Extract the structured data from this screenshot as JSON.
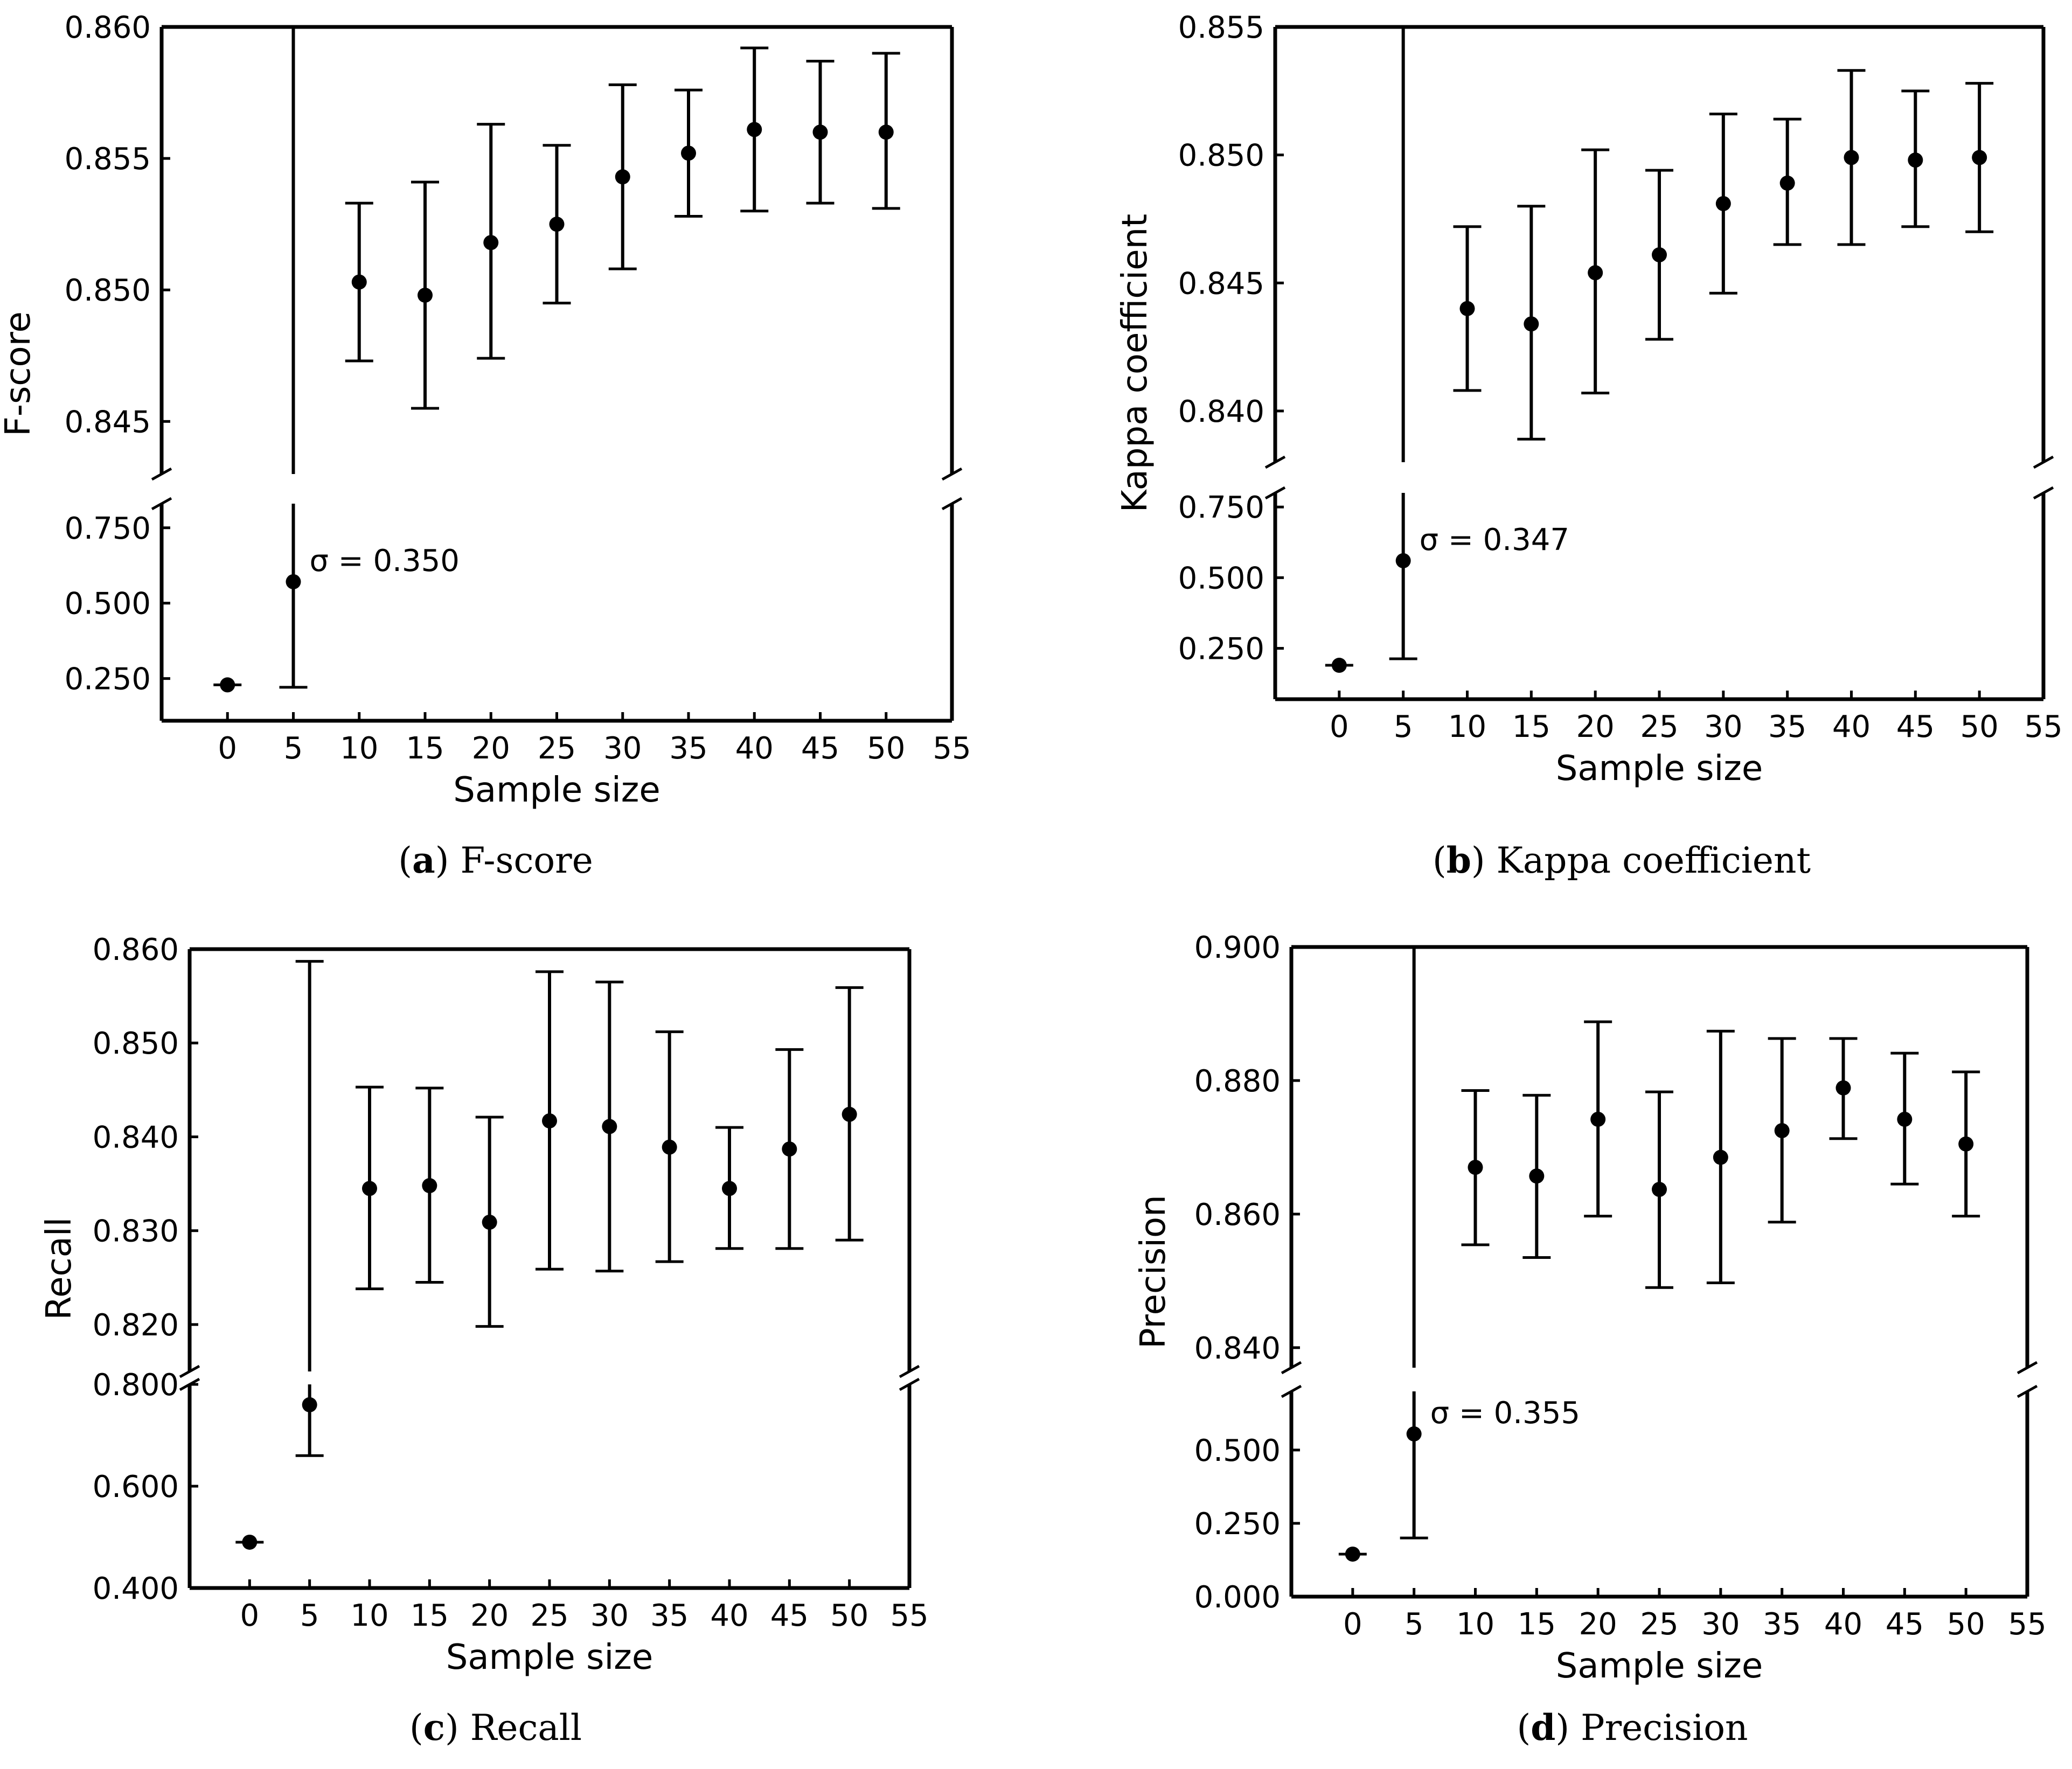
{
  "chart_data": [
    {
      "type": "scatter",
      "panel": "a",
      "caption_letter": "a",
      "caption_text": "F-score",
      "xlabel": "Sample size",
      "ylabel": "F-score",
      "xlim": [
        -5,
        55
      ],
      "xticks": [
        0,
        5,
        10,
        15,
        20,
        25,
        30,
        35,
        40,
        45,
        50,
        55
      ],
      "top_ylim": [
        0.843,
        0.86
      ],
      "top_yticks": [
        0.845,
        0.85,
        0.855,
        0.86
      ],
      "top_ytick_labels": [
        "0.845",
        "0.850",
        "0.855",
        "0.860"
      ],
      "bottom_ylim": [
        0.11,
        0.83
      ],
      "bottom_yticks": [
        0.25,
        0.5,
        0.75
      ],
      "bottom_ytick_labels": [
        "0.250",
        "0.500",
        "0.750"
      ],
      "points": [
        {
          "x": 0,
          "y": 0.229,
          "low": 0.229,
          "high": 0.229
        },
        {
          "x": 5,
          "y": 0.571,
          "low": 0.221,
          "high": 0.921
        },
        {
          "x": 10,
          "y": 0.8503,
          "low": 0.8473,
          "high": 0.8533
        },
        {
          "x": 15,
          "y": 0.8498,
          "low": 0.8455,
          "high": 0.8541
        },
        {
          "x": 20,
          "y": 0.8518,
          "low": 0.8474,
          "high": 0.8563
        },
        {
          "x": 25,
          "y": 0.8525,
          "low": 0.8495,
          "high": 0.8555
        },
        {
          "x": 30,
          "y": 0.8543,
          "low": 0.8508,
          "high": 0.8578
        },
        {
          "x": 35,
          "y": 0.8552,
          "low": 0.8528,
          "high": 0.8576
        },
        {
          "x": 40,
          "y": 0.8561,
          "low": 0.853,
          "high": 0.8592
        },
        {
          "x": 45,
          "y": 0.856,
          "low": 0.8533,
          "high": 0.8587
        },
        {
          "x": 50,
          "y": 0.856,
          "low": 0.8531,
          "high": 0.859
        }
      ],
      "annotation": "σ = 0.350"
    },
    {
      "type": "scatter",
      "panel": "b",
      "caption_letter": "b",
      "caption_text": "Kappa coefficient",
      "xlabel": "Sample size",
      "ylabel": "Kappa coefficient",
      "xlim": [
        -5,
        55
      ],
      "xticks": [
        0,
        5,
        10,
        15,
        20,
        25,
        30,
        35,
        40,
        45,
        50,
        55
      ],
      "top_ylim": [
        0.838,
        0.855
      ],
      "top_yticks": [
        0.84,
        0.845,
        0.85,
        0.855
      ],
      "top_ytick_labels": [
        "0.840",
        "0.845",
        "0.850",
        "0.855"
      ],
      "bottom_ylim": [
        0.07,
        0.8
      ],
      "bottom_yticks": [
        0.25,
        0.5,
        0.75
      ],
      "bottom_ytick_labels": [
        "0.250",
        "0.500",
        "0.750"
      ],
      "points": [
        {
          "x": 0,
          "y": 0.19,
          "low": 0.19,
          "high": 0.19
        },
        {
          "x": 5,
          "y": 0.56,
          "low": 0.213,
          "high": 0.907
        },
        {
          "x": 10,
          "y": 0.844,
          "low": 0.8408,
          "high": 0.8472
        },
        {
          "x": 15,
          "y": 0.8434,
          "low": 0.8389,
          "high": 0.848
        },
        {
          "x": 20,
          "y": 0.8454,
          "low": 0.8407,
          "high": 0.8502
        },
        {
          "x": 25,
          "y": 0.8461,
          "low": 0.8428,
          "high": 0.8494
        },
        {
          "x": 30,
          "y": 0.8481,
          "low": 0.8446,
          "high": 0.8516
        },
        {
          "x": 35,
          "y": 0.8489,
          "low": 0.8465,
          "high": 0.8514
        },
        {
          "x": 40,
          "y": 0.8499,
          "low": 0.8465,
          "high": 0.8533
        },
        {
          "x": 45,
          "y": 0.8498,
          "low": 0.8472,
          "high": 0.8525
        },
        {
          "x": 50,
          "y": 0.8499,
          "low": 0.847,
          "high": 0.8528
        }
      ],
      "annotation": "σ = 0.347"
    },
    {
      "type": "scatter",
      "panel": "c",
      "caption_letter": "c",
      "caption_text": "Recall",
      "xlabel": "Sample size",
      "ylabel": "Recall",
      "xlim": [
        -5,
        55
      ],
      "xticks": [
        0,
        5,
        10,
        15,
        20,
        25,
        30,
        35,
        40,
        45,
        50,
        55
      ],
      "top_ylim": [
        0.815,
        0.86
      ],
      "top_yticks": [
        0.82,
        0.83,
        0.84,
        0.85,
        0.86
      ],
      "top_ytick_labels": [
        "0.820",
        "0.830",
        "0.840",
        "0.850",
        "0.860"
      ],
      "bottom_ylim": [
        0.4,
        0.8
      ],
      "bottom_yticks": [
        0.4,
        0.6,
        0.8
      ],
      "bottom_ytick_labels": [
        "0.400",
        "0.600",
        "0.800"
      ],
      "points": [
        {
          "x": 0,
          "y": 0.49,
          "low": 0.49,
          "high": 0.49
        },
        {
          "x": 5,
          "y": 0.76,
          "low": 0.66,
          "high": 0.8587
        },
        {
          "x": 10,
          "y": 0.8345,
          "low": 0.8238,
          "high": 0.8453
        },
        {
          "x": 15,
          "y": 0.8348,
          "low": 0.8245,
          "high": 0.8452
        },
        {
          "x": 20,
          "y": 0.8309,
          "low": 0.8198,
          "high": 0.8421
        },
        {
          "x": 25,
          "y": 0.8417,
          "low": 0.8259,
          "high": 0.8576
        },
        {
          "x": 30,
          "y": 0.8411,
          "low": 0.8257,
          "high": 0.8565
        },
        {
          "x": 35,
          "y": 0.8389,
          "low": 0.8267,
          "high": 0.8512
        },
        {
          "x": 40,
          "y": 0.8345,
          "low": 0.8281,
          "high": 0.841
        },
        {
          "x": 45,
          "y": 0.8387,
          "low": 0.8281,
          "high": 0.8493
        },
        {
          "x": 50,
          "y": 0.8424,
          "low": 0.829,
          "high": 0.8559
        }
      ],
      "annotation": ""
    },
    {
      "type": "scatter",
      "panel": "d",
      "caption_letter": "d",
      "caption_text": "Precision",
      "xlabel": "Sample size",
      "ylabel": "Precision",
      "xlim": [
        -5,
        55
      ],
      "xticks": [
        0,
        5,
        10,
        15,
        20,
        25,
        30,
        35,
        40,
        45,
        50,
        55
      ],
      "top_ylim": [
        0.837,
        0.9
      ],
      "top_yticks": [
        0.84,
        0.86,
        0.88,
        0.9
      ],
      "top_ytick_labels": [
        "0.840",
        "0.860",
        "0.880",
        "0.900"
      ],
      "bottom_ylim": [
        0.0,
        0.7
      ],
      "bottom_yticks": [
        0.0,
        0.25,
        0.5
      ],
      "bottom_ytick_labels": [
        "0.000",
        "0.250",
        "0.500"
      ],
      "points": [
        {
          "x": 0,
          "y": 0.145,
          "low": 0.145,
          "high": 0.145
        },
        {
          "x": 5,
          "y": 0.555,
          "low": 0.2,
          "high": 0.91
        },
        {
          "x": 10,
          "y": 0.867,
          "low": 0.8554,
          "high": 0.8785
        },
        {
          "x": 15,
          "y": 0.8657,
          "low": 0.8535,
          "high": 0.8778
        },
        {
          "x": 20,
          "y": 0.8742,
          "low": 0.8597,
          "high": 0.8888
        },
        {
          "x": 25,
          "y": 0.8637,
          "low": 0.849,
          "high": 0.8783
        },
        {
          "x": 30,
          "y": 0.8685,
          "low": 0.8497,
          "high": 0.8874
        },
        {
          "x": 35,
          "y": 0.8725,
          "low": 0.8588,
          "high": 0.8863
        },
        {
          "x": 40,
          "y": 0.8789,
          "low": 0.8713,
          "high": 0.8863
        },
        {
          "x": 45,
          "y": 0.8742,
          "low": 0.8645,
          "high": 0.8841
        },
        {
          "x": 50,
          "y": 0.8705,
          "low": 0.8597,
          "high": 0.8813
        }
      ],
      "annotation": "σ = 0.355"
    }
  ]
}
